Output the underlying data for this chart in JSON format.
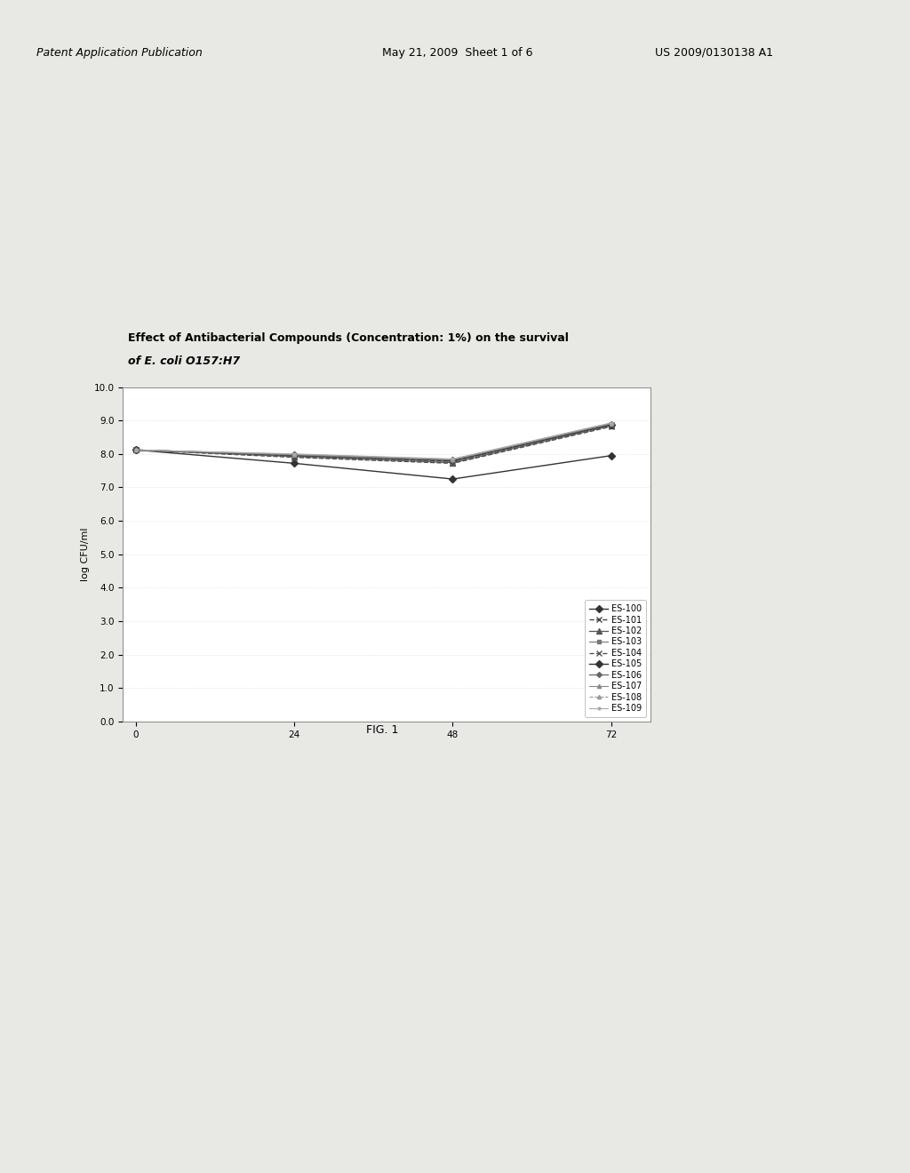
{
  "title_line1": "Effect of Antibacterial Compounds (Concentration: 1%) on the survival",
  "title_line2": "of E. coli O157:H7",
  "ylabel": "log CFU/ml",
  "fig_label": "FIG. 1",
  "x_ticks": [
    0,
    24,
    48,
    72
  ],
  "x_values": [
    0,
    24,
    48,
    72
  ],
  "ylim": [
    0.0,
    10.0
  ],
  "xlim": [
    -2,
    78
  ],
  "ytick_values": [
    0.0,
    1.0,
    2.0,
    3.0,
    4.0,
    5.0,
    6.0,
    7.0,
    8.0,
    9.0,
    10.0
  ],
  "series": [
    {
      "label": "ES-100",
      "marker": "D",
      "markersize": 4,
      "linestyle": "-",
      "linewidth": 1.0,
      "color": "#333333",
      "values": [
        8.12,
        7.72,
        7.25,
        7.95
      ]
    },
    {
      "label": "ES-101",
      "marker": "x",
      "markersize": 5,
      "linestyle": "--",
      "linewidth": 1.0,
      "color": "#444444",
      "values": [
        8.12,
        7.9,
        7.72,
        8.82
      ]
    },
    {
      "label": "ES-102",
      "marker": "^",
      "markersize": 4,
      "linestyle": "-",
      "linewidth": 0.9,
      "color": "#555555",
      "values": [
        8.12,
        7.92,
        7.74,
        8.84
      ]
    },
    {
      "label": "ES-103",
      "marker": "s",
      "markersize": 3,
      "linestyle": "-",
      "linewidth": 0.8,
      "color": "#777777",
      "values": [
        8.12,
        7.94,
        7.76,
        8.86
      ]
    },
    {
      "label": "ES-104",
      "marker": "x",
      "markersize": 5,
      "linestyle": "--",
      "linewidth": 1.0,
      "color": "#555555",
      "values": [
        8.12,
        7.95,
        7.78,
        8.87
      ]
    },
    {
      "label": "ES-105",
      "marker": "D",
      "markersize": 4,
      "linestyle": "-",
      "linewidth": 1.0,
      "color": "#333333",
      "values": [
        8.12,
        7.96,
        7.8,
        8.88
      ]
    },
    {
      "label": "ES-106",
      "marker": "D",
      "markersize": 3,
      "linestyle": "-",
      "linewidth": 0.9,
      "color": "#666666",
      "values": [
        8.12,
        7.97,
        7.82,
        8.9
      ]
    },
    {
      "label": "ES-107",
      "marker": "^",
      "markersize": 3,
      "linestyle": "-",
      "linewidth": 0.8,
      "color": "#888888",
      "values": [
        8.12,
        7.98,
        7.83,
        8.91
      ]
    },
    {
      "label": "ES-108",
      "marker": "^",
      "markersize": 3,
      "linestyle": "--",
      "linewidth": 0.8,
      "color": "#999999",
      "values": [
        8.12,
        7.99,
        7.84,
        8.92
      ]
    },
    {
      "label": "ES-109",
      "marker": ".",
      "markersize": 4,
      "linestyle": "-",
      "linewidth": 0.8,
      "color": "#aaaaaa",
      "values": [
        8.12,
        8.0,
        7.85,
        8.93
      ]
    }
  ],
  "background_color": "#e8e8e4",
  "plot_bg_color": "#ffffff",
  "title_fontsize": 9,
  "axis_fontsize": 8,
  "tick_fontsize": 7.5,
  "legend_fontsize": 7
}
